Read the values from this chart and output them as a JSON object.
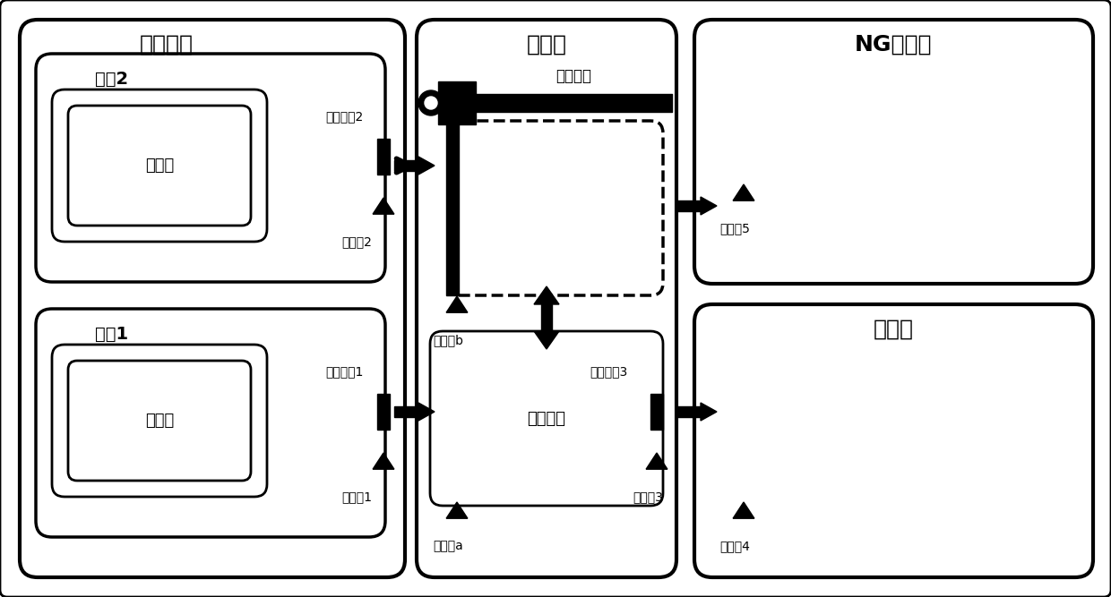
{
  "bg_color": "#ffffff",
  "fig_width": 12.4,
  "fig_height": 6.67,
  "labels": {
    "jiance_shebei": "检测设备",
    "yizaiji": "移载机",
    "ng_box": "NG收板箱",
    "liushuixian": "流水线",
    "gongwei2": "工位2",
    "gongwei1": "工位1",
    "beicheban_top": "被测板",
    "beicheban_bot": "被测板",
    "yizai_guidao": "移载轨道",
    "tuiban_jigou": "推板机构",
    "zdqg1": "阻挡气缸1",
    "zdqg2": "阻挡气缸2",
    "zdqg3": "阻挡气缸3",
    "chuanganqi1": "传感器1",
    "chuanganqi2": "传感器2",
    "chuanganqia": "传感器a",
    "chuanganqib": "传感器b",
    "chuanganqi3": "传感器3",
    "chuanganqi4": "传感器4",
    "chuanganqi5": "传感器5"
  }
}
